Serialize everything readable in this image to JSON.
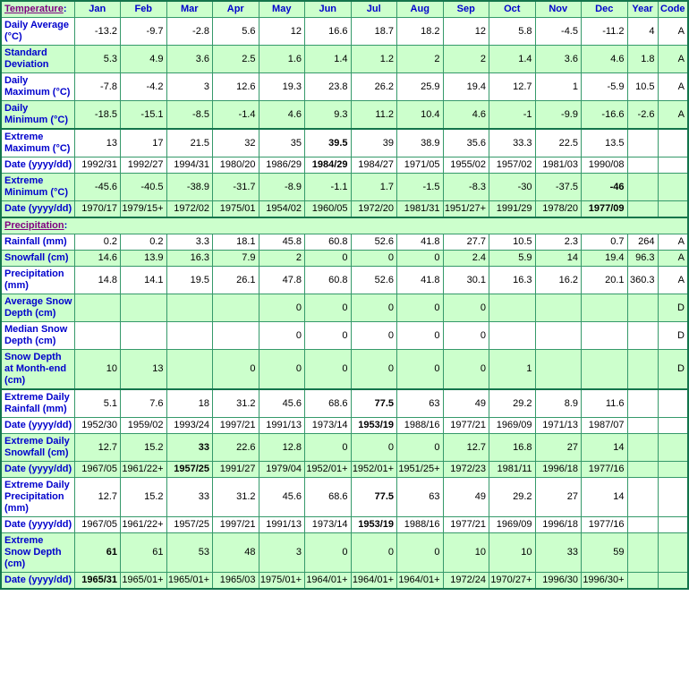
{
  "page": {
    "colors": {
      "cell_green": "#CCFFCC",
      "cell_white": "#FFFFFF",
      "grid_green": "#35996A",
      "section_border_green": "#13744B",
      "label_blue": "#0000CC",
      "section_title_purple": "#800080",
      "data_text": "#000000"
    },
    "temperature_section": {
      "title": "Temperature",
      "colon": ":"
    },
    "precipitation_section": {
      "title": "Precipitation",
      "colon": ":"
    },
    "columns": [
      "Jan",
      "Feb",
      "Mar",
      "Apr",
      "May",
      "Jun",
      "Jul",
      "Aug",
      "Sep",
      "Oct",
      "Nov",
      "Dec",
      "Year",
      "Code"
    ],
    "temperature_rows": [
      {
        "label": "Daily Average (°C)",
        "bg": "white",
        "cells": [
          "-13.2",
          "-9.7",
          "-2.8",
          "5.6",
          "12",
          "16.6",
          "18.7",
          "18.2",
          "12",
          "5.8",
          "-4.5",
          "-11.2",
          "4",
          "A"
        ],
        "bold": []
      },
      {
        "label": "Standard Deviation",
        "bg": "green",
        "cells": [
          "5.3",
          "4.9",
          "3.6",
          "2.5",
          "1.6",
          "1.4",
          "1.2",
          "2",
          "2",
          "1.4",
          "3.6",
          "4.6",
          "1.8",
          "A"
        ],
        "bold": []
      },
      {
        "label": "Daily Maximum (°C)",
        "bg": "white",
        "cells": [
          "-7.8",
          "-4.2",
          "3",
          "12.6",
          "19.3",
          "23.8",
          "26.2",
          "25.9",
          "19.4",
          "12.7",
          "1",
          "-5.9",
          "10.5",
          "A"
        ],
        "bold": []
      },
      {
        "label": "Daily Minimum (°C)",
        "bg": "green",
        "cells": [
          "-18.5",
          "-15.1",
          "-8.5",
          "-1.4",
          "4.6",
          "9.3",
          "11.2",
          "10.4",
          "4.6",
          "-1",
          "-9.9",
          "-16.6",
          "-2.6",
          "A"
        ],
        "bold": []
      },
      {
        "label": "Extreme Maximum (°C)",
        "bg": "white",
        "sep": true,
        "cells": [
          "13",
          "17",
          "21.5",
          "32",
          "35",
          "39.5",
          "39",
          "38.9",
          "35.6",
          "33.3",
          "22.5",
          "13.5",
          "",
          ""
        ],
        "bold": [
          5
        ]
      },
      {
        "label": "Date (yyyy/dd)",
        "bg": "white",
        "cells": [
          "1992/31",
          "1992/27",
          "1994/31",
          "1980/20",
          "1986/29",
          "1984/29",
          "1984/27",
          "1971/05",
          "1955/02",
          "1957/02",
          "1981/03",
          "1990/08",
          "",
          ""
        ],
        "bold": [
          5
        ]
      },
      {
        "label": "Extreme Minimum (°C)",
        "bg": "green",
        "cells": [
          "-45.6",
          "-40.5",
          "-38.9",
          "-31.7",
          "-8.9",
          "-1.1",
          "1.7",
          "-1.5",
          "-8.3",
          "-30",
          "-37.5",
          "-46",
          "",
          ""
        ],
        "bold": [
          11
        ]
      },
      {
        "label": "Date (yyyy/dd)",
        "bg": "green",
        "cells": [
          "1970/17",
          "1979/15+",
          "1972/02",
          "1975/01",
          "1954/02",
          "1960/05",
          "1972/20",
          "1981/31",
          "1951/27+",
          "1991/29",
          "1978/20",
          "1977/09",
          "",
          ""
        ],
        "bold": [
          11
        ]
      }
    ],
    "precipitation_rows": [
      {
        "label": "Rainfall (mm)",
        "bg": "white",
        "cells": [
          "0.2",
          "0.2",
          "3.3",
          "18.1",
          "45.8",
          "60.8",
          "52.6",
          "41.8",
          "27.7",
          "10.5",
          "2.3",
          "0.7",
          "264",
          "A"
        ],
        "bold": []
      },
      {
        "label": "Snowfall (cm)",
        "bg": "green",
        "cells": [
          "14.6",
          "13.9",
          "16.3",
          "7.9",
          "2",
          "0",
          "0",
          "0",
          "2.4",
          "5.9",
          "14",
          "19.4",
          "96.3",
          "A"
        ],
        "bold": []
      },
      {
        "label": "Precipitation (mm)",
        "bg": "white",
        "cells": [
          "14.8",
          "14.1",
          "19.5",
          "26.1",
          "47.8",
          "60.8",
          "52.6",
          "41.8",
          "30.1",
          "16.3",
          "16.2",
          "20.1",
          "360.3",
          "A"
        ],
        "bold": []
      },
      {
        "label": "Average Snow Depth (cm)",
        "bg": "green",
        "cells": [
          "",
          "",
          "",
          "",
          "0",
          "0",
          "0",
          "0",
          "0",
          "",
          "",
          "",
          "",
          "D"
        ],
        "bold": []
      },
      {
        "label": "Median Snow Depth (cm)",
        "bg": "white",
        "cells": [
          "",
          "",
          "",
          "",
          "0",
          "0",
          "0",
          "0",
          "0",
          "",
          "",
          "",
          "",
          "D"
        ],
        "bold": []
      },
      {
        "label": "Snow Depth at Month-end (cm)",
        "bg": "green",
        "cells": [
          "10",
          "13",
          "",
          "0",
          "0",
          "0",
          "0",
          "0",
          "0",
          "1",
          "",
          "",
          "",
          "D"
        ],
        "bold": []
      },
      {
        "label": "Extreme Daily Rainfall (mm)",
        "bg": "white",
        "sep": true,
        "cells": [
          "5.1",
          "7.6",
          "18",
          "31.2",
          "45.6",
          "68.6",
          "77.5",
          "63",
          "49",
          "29.2",
          "8.9",
          "11.6",
          "",
          ""
        ],
        "bold": [
          6
        ]
      },
      {
        "label": "Date (yyyy/dd)",
        "bg": "white",
        "cells": [
          "1952/30",
          "1959/02",
          "1993/24",
          "1997/21",
          "1991/13",
          "1973/14",
          "1953/19",
          "1988/16",
          "1977/21",
          "1969/09",
          "1971/13",
          "1987/07",
          "",
          ""
        ],
        "bold": [
          6
        ]
      },
      {
        "label": "Extreme Daily Snowfall (cm)",
        "bg": "green",
        "cells": [
          "12.7",
          "15.2",
          "33",
          "22.6",
          "12.8",
          "0",
          "0",
          "0",
          "12.7",
          "16.8",
          "27",
          "14",
          "",
          ""
        ],
        "bold": [
          2
        ]
      },
      {
        "label": "Date (yyyy/dd)",
        "bg": "green",
        "cells": [
          "1967/05",
          "1961/22+",
          "1957/25",
          "1991/27",
          "1979/04",
          "1952/01+",
          "1952/01+",
          "1951/25+",
          "1972/23",
          "1981/11",
          "1996/18",
          "1977/16",
          "",
          ""
        ],
        "bold": [
          2
        ]
      },
      {
        "label": "Extreme Daily Precipitation (mm)",
        "bg": "white",
        "cells": [
          "12.7",
          "15.2",
          "33",
          "31.2",
          "45.6",
          "68.6",
          "77.5",
          "63",
          "49",
          "29.2",
          "27",
          "14",
          "",
          ""
        ],
        "bold": [
          6
        ]
      },
      {
        "label": "Date (yyyy/dd)",
        "bg": "white",
        "cells": [
          "1967/05",
          "1961/22+",
          "1957/25",
          "1997/21",
          "1991/13",
          "1973/14",
          "1953/19",
          "1988/16",
          "1977/21",
          "1969/09",
          "1996/18",
          "1977/16",
          "",
          ""
        ],
        "bold": [
          6
        ]
      },
      {
        "label": "Extreme Snow Depth (cm)",
        "bg": "green",
        "cells": [
          "61",
          "61",
          "53",
          "48",
          "3",
          "0",
          "0",
          "0",
          "10",
          "10",
          "33",
          "59",
          "",
          ""
        ],
        "bold": [
          0
        ]
      },
      {
        "label": "Date (yyyy/dd)",
        "bg": "green",
        "cells": [
          "1965/31",
          "1965/01+",
          "1965/01+",
          "1965/03",
          "1975/01+",
          "1964/01+",
          "1964/01+",
          "1964/01+",
          "1972/24",
          "1970/27+",
          "1996/30",
          "1996/30+",
          "",
          ""
        ],
        "bold": [
          0
        ]
      }
    ]
  }
}
